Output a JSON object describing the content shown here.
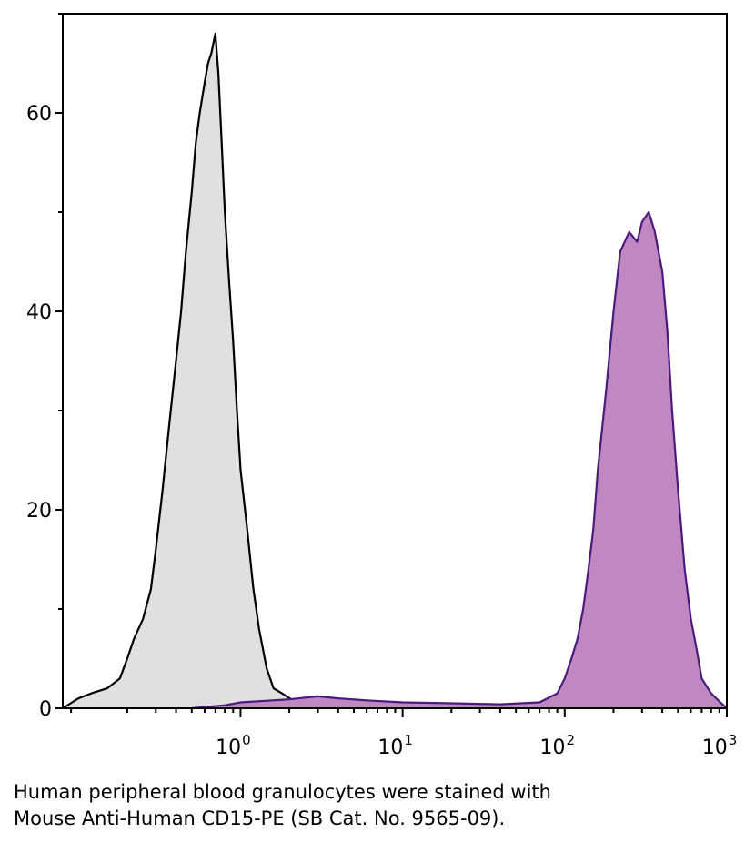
{
  "chart_data": {
    "type": "area",
    "x_scale": "log",
    "xlim": [
      0.08,
      1000
    ],
    "ylim": [
      0,
      70
    ],
    "grid": false,
    "legend": "none",
    "y_ticks": [
      0,
      20,
      40,
      60
    ],
    "y_tick_labels": [
      "0",
      "20",
      "40",
      "60"
    ],
    "y_minor_ticks": [
      10,
      30,
      50,
      70
    ],
    "x_ticks": [
      1,
      10,
      100,
      1000
    ],
    "x_tick_labels": [
      {
        "base": "10",
        "exp": "0"
      },
      {
        "base": "10",
        "exp": "1"
      },
      {
        "base": "10",
        "exp": "2"
      },
      {
        "base": "10",
        "exp": "3"
      }
    ],
    "series": [
      {
        "stroke": "#000000",
        "fill": "#e0e0e0",
        "x": [
          0.08,
          0.1,
          0.12,
          0.15,
          0.18,
          0.2,
          0.22,
          0.25,
          0.28,
          0.3,
          0.33,
          0.36,
          0.4,
          0.43,
          0.46,
          0.5,
          0.53,
          0.56,
          0.6,
          0.63,
          0.66,
          0.7,
          0.73,
          0.76,
          0.8,
          0.85,
          0.9,
          0.95,
          1.0,
          1.1,
          1.2,
          1.3,
          1.45,
          1.6,
          1.8,
          2.1,
          2.5,
          3.0
        ],
        "y": [
          0,
          1,
          1.5,
          2,
          3,
          5,
          7,
          9,
          12,
          16,
          22,
          28,
          35,
          40,
          46,
          52,
          57,
          60,
          63,
          65,
          66,
          68,
          64,
          58,
          50,
          43,
          37,
          30,
          24,
          18,
          12,
          8,
          4,
          2,
          1.5,
          0.8,
          0.3,
          0
        ]
      },
      {
        "stroke": "#4b1a7f",
        "fill": "#c088c0",
        "x": [
          0.5,
          0.8,
          1.0,
          2.0,
          3.0,
          4.0,
          6.0,
          10,
          20,
          40,
          70,
          90,
          100,
          110,
          120,
          130,
          140,
          150,
          160,
          180,
          200,
          220,
          250,
          280,
          300,
          330,
          360,
          400,
          430,
          460,
          500,
          550,
          600,
          650,
          700,
          800,
          900,
          1000
        ],
        "y": [
          0,
          0.3,
          0.6,
          0.9,
          1.2,
          1.0,
          0.8,
          0.6,
          0.5,
          0.4,
          0.6,
          1.5,
          3,
          5,
          7,
          10,
          14,
          18,
          24,
          32,
          40,
          46,
          48,
          47,
          49,
          50,
          48,
          44,
          38,
          30,
          22,
          14,
          9,
          6,
          3,
          1.5,
          0.7,
          0
        ]
      }
    ]
  },
  "caption": {
    "line1": "Human peripheral blood granulocytes were stained with",
    "line2": "Mouse Anti-Human CD15-PE (SB Cat. No. 9565-09)."
  }
}
